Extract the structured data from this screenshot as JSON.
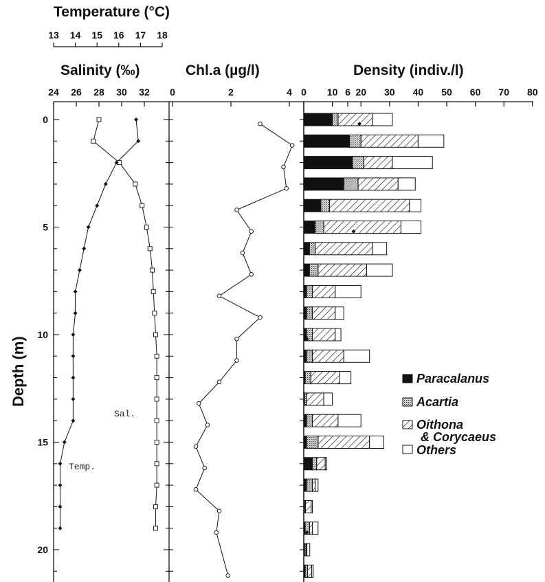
{
  "chart_data": [
    {
      "type": "line",
      "panel": "temperature-salinity",
      "title_top": "Temperature (°C)",
      "title": "Salinity (‰)",
      "ylabel": "Depth (m)",
      "temp_ticks": [
        "13",
        "14",
        "15",
        "16",
        "17",
        "18"
      ],
      "sal_ticks": [
        "24",
        "26",
        "28",
        "30",
        "32"
      ],
      "depth_ticks": [
        "0",
        "5",
        "10",
        "15",
        "20"
      ],
      "temp_range": [
        13,
        18
      ],
      "sal_range": [
        24,
        34
      ],
      "ylim": [
        0,
        21
      ],
      "y_inverted": true,
      "annotations": {
        "temp": "Temp.",
        "sal": "Sal."
      },
      "series": [
        {
          "name": "Sal.",
          "marker": "square",
          "x": [
            28.0,
            27.5,
            29.8,
            31.2,
            31.8,
            32.2,
            32.5,
            32.7,
            32.8,
            32.9,
            33.0,
            33.1,
            33.1,
            33.1,
            33.1,
            33.1,
            33.1,
            33.1,
            33.0,
            33.0
          ],
          "y": [
            0,
            1,
            2,
            3,
            4,
            5,
            6,
            7,
            8,
            9,
            10,
            11,
            12,
            13,
            14,
            15,
            16,
            17,
            18,
            19
          ]
        },
        {
          "name": "Temp.",
          "marker": "diamond",
          "x": [
            16.8,
            16.9,
            15.9,
            15.4,
            15.0,
            14.6,
            14.4,
            14.2,
            14.0,
            14.0,
            13.9,
            13.9,
            13.9,
            13.9,
            13.9,
            13.5,
            13.3,
            13.3,
            13.3,
            13.3
          ],
          "y": [
            0,
            1,
            2,
            3,
            4,
            5,
            6,
            7,
            8,
            9,
            10,
            11,
            12,
            13,
            14,
            15,
            16,
            17,
            18,
            19
          ]
        }
      ]
    },
    {
      "type": "line",
      "panel": "chlorophyll",
      "title": "Chl.a (µg/l)",
      "ticks": [
        "0",
        "2",
        "4",
        "6"
      ],
      "xlim": [
        0,
        7
      ],
      "series": [
        {
          "name": "Chl.a",
          "marker": "circle",
          "x": [
            3.0,
            4.1,
            3.8,
            3.9,
            2.2,
            2.7,
            2.4,
            2.7,
            1.6,
            3.0,
            2.2,
            2.2,
            1.6,
            0.9,
            1.2,
            0.8,
            1.1,
            0.8,
            1.6,
            1.5,
            1.9
          ],
          "y": [
            0.2,
            1.2,
            2.2,
            3.2,
            4.2,
            5.2,
            6.2,
            7.2,
            8.2,
            9.2,
            10.2,
            11.2,
            12.2,
            13.2,
            14.2,
            15.2,
            16.2,
            17.2,
            18.2,
            19.2,
            21.2
          ]
        },
        {
          "name": "points",
          "marker": "diamond",
          "x": [
            6.4,
            6.2,
            4.6,
            4.6
          ],
          "y": [
            0.2,
            5.2,
            10.2,
            19.2
          ]
        }
      ]
    },
    {
      "type": "bar",
      "panel": "density",
      "orientation": "horizontal",
      "stacked": true,
      "title": "Density (indiv./l)",
      "ticks": [
        "0",
        "10",
        "20",
        "30",
        "40",
        "50",
        "60",
        "70",
        "80"
      ],
      "xlim": [
        0,
        80
      ],
      "categories": [
        0,
        1,
        2,
        3,
        4,
        5,
        6,
        7,
        8,
        9,
        10,
        11,
        12,
        13,
        14,
        15,
        16,
        17,
        18,
        19,
        20,
        21
      ],
      "series": [
        {
          "name": "Paracalanus",
          "pattern": "solid",
          "values": [
            10,
            16,
            17,
            14,
            6,
            4,
            2,
            2,
            1,
            1,
            1,
            1,
            0.5,
            0.3,
            1,
            1,
            3,
            1,
            0.3,
            0.5,
            0.3,
            0.5
          ]
        },
        {
          "name": "Acartia",
          "pattern": "dots",
          "values": [
            2,
            4,
            4,
            5,
            3,
            3,
            2,
            3,
            2,
            2,
            2,
            2,
            2,
            0.7,
            2,
            4,
            1.5,
            2,
            0.3,
            1.5,
            0.5,
            0.8
          ]
        },
        {
          "name": "Oithona & Corycaeus",
          "pattern": "hatch",
          "values": [
            12,
            20,
            10,
            14,
            28,
            27,
            20,
            17,
            8,
            8,
            8,
            11,
            10,
            6,
            9,
            18,
            3,
            1,
            2,
            1,
            0.3,
            1.5
          ]
        },
        {
          "name": "Others",
          "pattern": "open",
          "values": [
            7,
            9,
            14,
            6,
            4,
            7,
            5,
            9,
            9,
            3,
            2,
            9,
            4,
            3,
            8,
            5,
            0.5,
            1,
            0.4,
            2,
            1,
            0.5
          ]
        }
      ]
    }
  ]
}
